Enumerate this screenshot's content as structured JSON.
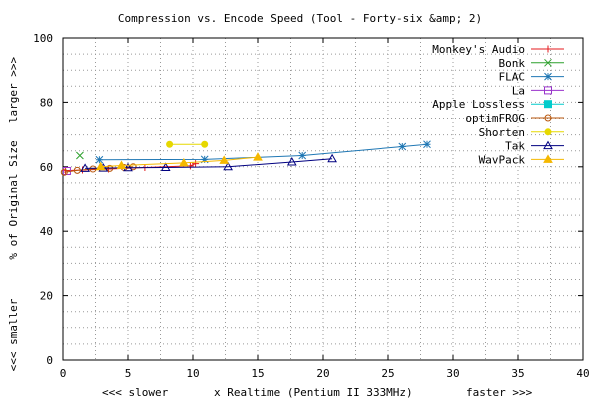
{
  "chart_data": {
    "type": "line",
    "title": "Compression vs. Encode Speed (Tool - Forty-six &amp; 2)",
    "xlabel": "x Realtime (Pentium II 333MHz)",
    "xlabel_left": "<<< slower",
    "xlabel_right": "faster >>>",
    "ylabel": "% of Original Size",
    "ylabel_top": "larger >>>",
    "ylabel_bottom": "<<< smaller",
    "xlim": [
      0,
      40
    ],
    "ylim": [
      0,
      100
    ],
    "xticks": [
      "0",
      "5",
      "10",
      "15",
      "20",
      "25",
      "30",
      "35",
      "40"
    ],
    "yticks": [
      "0",
      "20",
      "40",
      "60",
      "80",
      "100"
    ],
    "grid": true,
    "legend_position": "top-right",
    "series": [
      {
        "name": "Monkey's Audio",
        "color": "#e41a1c",
        "marker": "plus",
        "x": [
          0.2,
          1.5,
          3.5,
          6.3,
          9.8,
          10.2
        ],
        "y": [
          58.8,
          59.0,
          59.3,
          59.8,
          60.3,
          61.0
        ]
      },
      {
        "name": "Bonk",
        "color": "#2ca02c",
        "marker": "cross",
        "x": [
          1.3
        ],
        "y": [
          63.5
        ]
      },
      {
        "name": "FLAC",
        "color": "#1f77b4",
        "marker": "star",
        "x": [
          2.8,
          10.9,
          18.4,
          26.1,
          28.0
        ],
        "y": [
          62.2,
          62.3,
          63.5,
          66.3,
          67.0
        ]
      },
      {
        "name": "La",
        "color": "#9933cc",
        "marker": "square",
        "x": [
          0.3
        ],
        "y": [
          58.7
        ]
      },
      {
        "name": "Apple Lossless",
        "color": "#00cccc",
        "marker": "filled-square",
        "x": [],
        "y": []
      },
      {
        "name": "optimFROG",
        "color": "#b8560b",
        "marker": "circle",
        "x": [
          0.1,
          1.1,
          2.3,
          3.6,
          4.7,
          5.4
        ],
        "y": [
          58.3,
          58.9,
          59.3,
          59.5,
          59.8,
          60.0
        ]
      },
      {
        "name": "Shorten",
        "color": "#e6d800",
        "marker": "filled-circle",
        "x": [
          8.2,
          10.9
        ],
        "y": [
          67.0,
          67.0
        ]
      },
      {
        "name": "Tak",
        "color": "#000080",
        "marker": "triangle",
        "x": [
          1.7,
          3.1,
          5.0,
          7.9,
          12.7,
          17.6,
          20.7
        ],
        "y": [
          59.5,
          59.6,
          59.7,
          59.8,
          60.0,
          61.5,
          62.5
        ]
      },
      {
        "name": "WavPack",
        "color": "#f5b800",
        "marker": "filled-triangle",
        "x": [
          2.9,
          4.5,
          9.3,
          12.4,
          15.0
        ],
        "y": [
          60.0,
          60.4,
          61.2,
          62.0,
          63.0
        ]
      }
    ]
  }
}
